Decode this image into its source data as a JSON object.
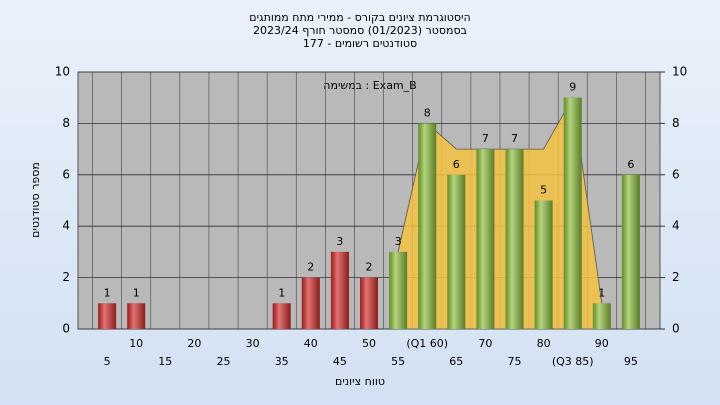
{
  "chart_data": {
    "type": "bar",
    "title": "היסטוגרמת ציונים בקורס - ממירי מתח ממותגים",
    "subtitle": "בסמסטר  (01/2023)  סמסטר חורף 2023/24",
    "subtitle2": "סטודנטים רשומים - 177",
    "legend": "במשימה : Exam_B",
    "x_label": "טווח ציונים",
    "y_label": "מספר סטודנטים",
    "categories": [
      "5",
      "10",
      "15",
      "20",
      "25",
      "30",
      "35",
      "40",
      "45",
      "50",
      "55",
      "(Q1 60)",
      "65",
      "70",
      "75",
      "80",
      "(Q3 85)",
      "90",
      "95"
    ],
    "values": [
      1,
      1,
      0,
      0,
      0,
      0,
      1,
      2,
      3,
      2,
      3,
      8,
      6,
      7,
      7,
      5,
      9,
      1,
      6
    ],
    "colors": [
      "#d42a2a",
      "#d42a2a",
      "#d42a2a",
      "#d42a2a",
      "#d42a2a",
      "#d42a2a",
      "#d42a2a",
      "#d42a2a",
      "#d42a2a",
      "#d42a2a",
      "#8cbf3a",
      "#8cbf3a",
      "#8cbf3a",
      "#8cbf3a",
      "#8cbf3a",
      "#8cbf3a",
      "#8cbf3a",
      "#8cbf3a",
      "#8cbf3a"
    ],
    "area": {
      "color": "#f5c242",
      "values": [
        null,
        null,
        null,
        null,
        null,
        null,
        null,
        null,
        null,
        null,
        3,
        8,
        7,
        7,
        7,
        7,
        9,
        1,
        null
      ]
    },
    "ylim": [
      0,
      10
    ],
    "yticks": [
      0,
      2,
      4,
      6,
      8,
      10
    ],
    "y2lim": [
      0,
      10
    ],
    "y2ticks": [
      0,
      2,
      4,
      6,
      8,
      10
    ],
    "grid": true
  }
}
